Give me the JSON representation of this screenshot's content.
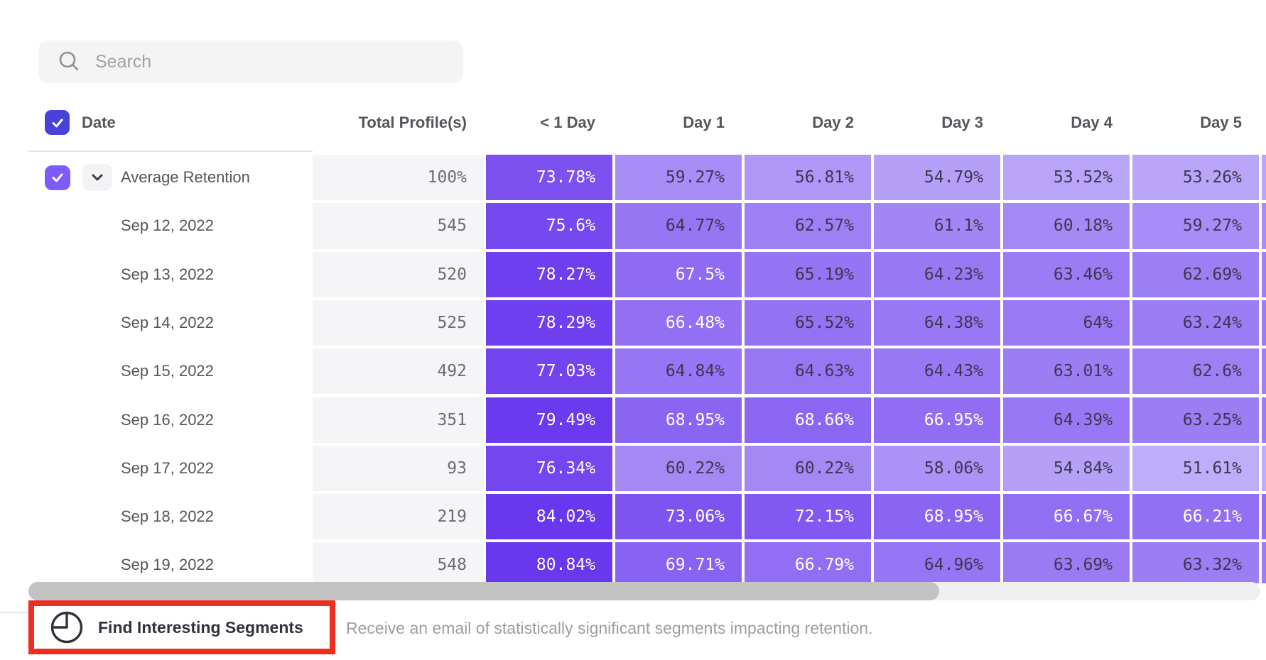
{
  "search": {
    "placeholder": "Search"
  },
  "table": {
    "header": {
      "date_label": "Date",
      "total_label": "Total Profile(s)",
      "day_labels": [
        "< 1 Day",
        "Day 1",
        "Day 2",
        "Day 3",
        "Day 4",
        "Day 5"
      ]
    },
    "rows": [
      {
        "label": "Average Retention",
        "is_average": true,
        "total": "100%",
        "cells": [
          {
            "t": "73.78%",
            "v": 73.78
          },
          {
            "t": "59.27%",
            "v": 59.27
          },
          {
            "t": "56.81%",
            "v": 56.81
          },
          {
            "t": "54.79%",
            "v": 54.79
          },
          {
            "t": "53.52%",
            "v": 53.52
          },
          {
            "t": "53.26%",
            "v": 53.26
          }
        ]
      },
      {
        "label": "Sep 12, 2022",
        "is_average": false,
        "total": "545",
        "cells": [
          {
            "t": "75.6%",
            "v": 75.6
          },
          {
            "t": "64.77%",
            "v": 64.77
          },
          {
            "t": "62.57%",
            "v": 62.57
          },
          {
            "t": "61.1%",
            "v": 61.1
          },
          {
            "t": "60.18%",
            "v": 60.18
          },
          {
            "t": "59.27%",
            "v": 59.27
          }
        ]
      },
      {
        "label": "Sep 13, 2022",
        "is_average": false,
        "total": "520",
        "cells": [
          {
            "t": "78.27%",
            "v": 78.27
          },
          {
            "t": "67.5%",
            "v": 67.5
          },
          {
            "t": "65.19%",
            "v": 65.19
          },
          {
            "t": "64.23%",
            "v": 64.23
          },
          {
            "t": "63.46%",
            "v": 63.46
          },
          {
            "t": "62.69%",
            "v": 62.69
          }
        ]
      },
      {
        "label": "Sep 14, 2022",
        "is_average": false,
        "total": "525",
        "cells": [
          {
            "t": "78.29%",
            "v": 78.29
          },
          {
            "t": "66.48%",
            "v": 66.48
          },
          {
            "t": "65.52%",
            "v": 65.52
          },
          {
            "t": "64.38%",
            "v": 64.38
          },
          {
            "t": "64%",
            "v": 64
          },
          {
            "t": "63.24%",
            "v": 63.24
          }
        ]
      },
      {
        "label": "Sep 15, 2022",
        "is_average": false,
        "total": "492",
        "cells": [
          {
            "t": "77.03%",
            "v": 77.03
          },
          {
            "t": "64.84%",
            "v": 64.84
          },
          {
            "t": "64.63%",
            "v": 64.63
          },
          {
            "t": "64.43%",
            "v": 64.43
          },
          {
            "t": "63.01%",
            "v": 63.01
          },
          {
            "t": "62.6%",
            "v": 62.6
          }
        ]
      },
      {
        "label": "Sep 16, 2022",
        "is_average": false,
        "total": "351",
        "cells": [
          {
            "t": "79.49%",
            "v": 79.49
          },
          {
            "t": "68.95%",
            "v": 68.95
          },
          {
            "t": "68.66%",
            "v": 68.66
          },
          {
            "t": "66.95%",
            "v": 66.95
          },
          {
            "t": "64.39%",
            "v": 64.39
          },
          {
            "t": "63.25%",
            "v": 63.25
          }
        ]
      },
      {
        "label": "Sep 17, 2022",
        "is_average": false,
        "total": "93",
        "cells": [
          {
            "t": "76.34%",
            "v": 76.34
          },
          {
            "t": "60.22%",
            "v": 60.22
          },
          {
            "t": "60.22%",
            "v": 60.22
          },
          {
            "t": "58.06%",
            "v": 58.06
          },
          {
            "t": "54.84%",
            "v": 54.84
          },
          {
            "t": "51.61%",
            "v": 51.61
          }
        ]
      },
      {
        "label": "Sep 18, 2022",
        "is_average": false,
        "total": "219",
        "cells": [
          {
            "t": "84.02%",
            "v": 84.02
          },
          {
            "t": "73.06%",
            "v": 73.06
          },
          {
            "t": "72.15%",
            "v": 72.15
          },
          {
            "t": "68.95%",
            "v": 68.95
          },
          {
            "t": "66.67%",
            "v": 66.67
          },
          {
            "t": "66.21%",
            "v": 66.21
          }
        ]
      },
      {
        "label": "Sep 19, 2022",
        "is_average": false,
        "total": "548",
        "cells": [
          {
            "t": "80.84%",
            "v": 80.84
          },
          {
            "t": "69.71%",
            "v": 69.71
          },
          {
            "t": "66.79%",
            "v": 66.79
          },
          {
            "t": "64.96%",
            "v": 64.96
          },
          {
            "t": "63.69%",
            "v": 63.69
          },
          {
            "t": "63.32%",
            "v": 63.32
          }
        ]
      }
    ]
  },
  "footer": {
    "button_label": "Find Interesting Segments",
    "description": "Receive an email of statistically significant segments impacting retention."
  },
  "colors": {
    "header_checkbox": "#4a41d9",
    "row_checkbox": "#7e5bfb",
    "cell_scale_light": "#c3b4f9",
    "cell_scale_dark": "#6937ee",
    "cell_text_dark": "#3c3751",
    "cell_text_light": "#ffffff",
    "annotation_red": "#ee2e1f",
    "profiles_bg": "#f5f4f6"
  }
}
